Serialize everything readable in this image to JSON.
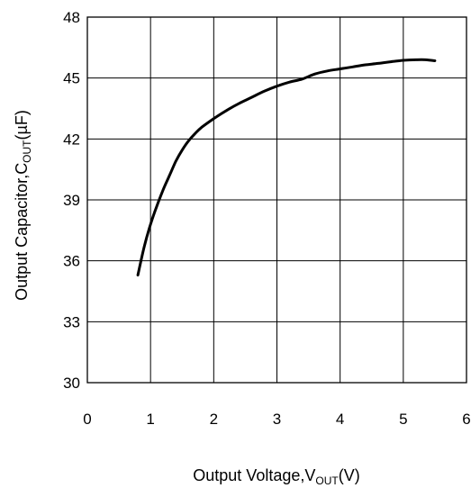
{
  "chart_data": {
    "type": "line",
    "title": "",
    "xlabel": {
      "main": "Output Voltage,V",
      "sub": "OUT",
      "unit": "(V)"
    },
    "ylabel": {
      "main": "Output Capacitor,C",
      "sub": "OUT",
      "unit": "(µF)"
    },
    "xlim": [
      0,
      6
    ],
    "ylim": [
      30,
      48
    ],
    "xticks": [
      "0",
      "1",
      "2",
      "3",
      "4",
      "5",
      "6"
    ],
    "yticks": [
      "30",
      "33",
      "36",
      "39",
      "42",
      "45",
      "48"
    ],
    "grid": true,
    "legend": "none",
    "series": [
      {
        "x": [
          0.8,
          0.9,
          1.0,
          1.1,
          1.2,
          1.3,
          1.4,
          1.5,
          1.6,
          1.7,
          1.8,
          2.0,
          2.2,
          2.4,
          2.6,
          2.8,
          3.0,
          3.2,
          3.4,
          3.6,
          3.8,
          4.0,
          4.2,
          4.4,
          4.6,
          4.8,
          5.0,
          5.2,
          5.35,
          5.5
        ],
        "y": [
          35.3,
          36.7,
          37.8,
          38.7,
          39.5,
          40.2,
          40.9,
          41.45,
          41.9,
          42.25,
          42.55,
          43.0,
          43.4,
          43.75,
          44.05,
          44.35,
          44.6,
          44.8,
          44.95,
          45.2,
          45.35,
          45.45,
          45.55,
          45.65,
          45.72,
          45.8,
          45.87,
          45.9,
          45.9,
          45.85
        ],
        "color": "#000000"
      }
    ]
  }
}
